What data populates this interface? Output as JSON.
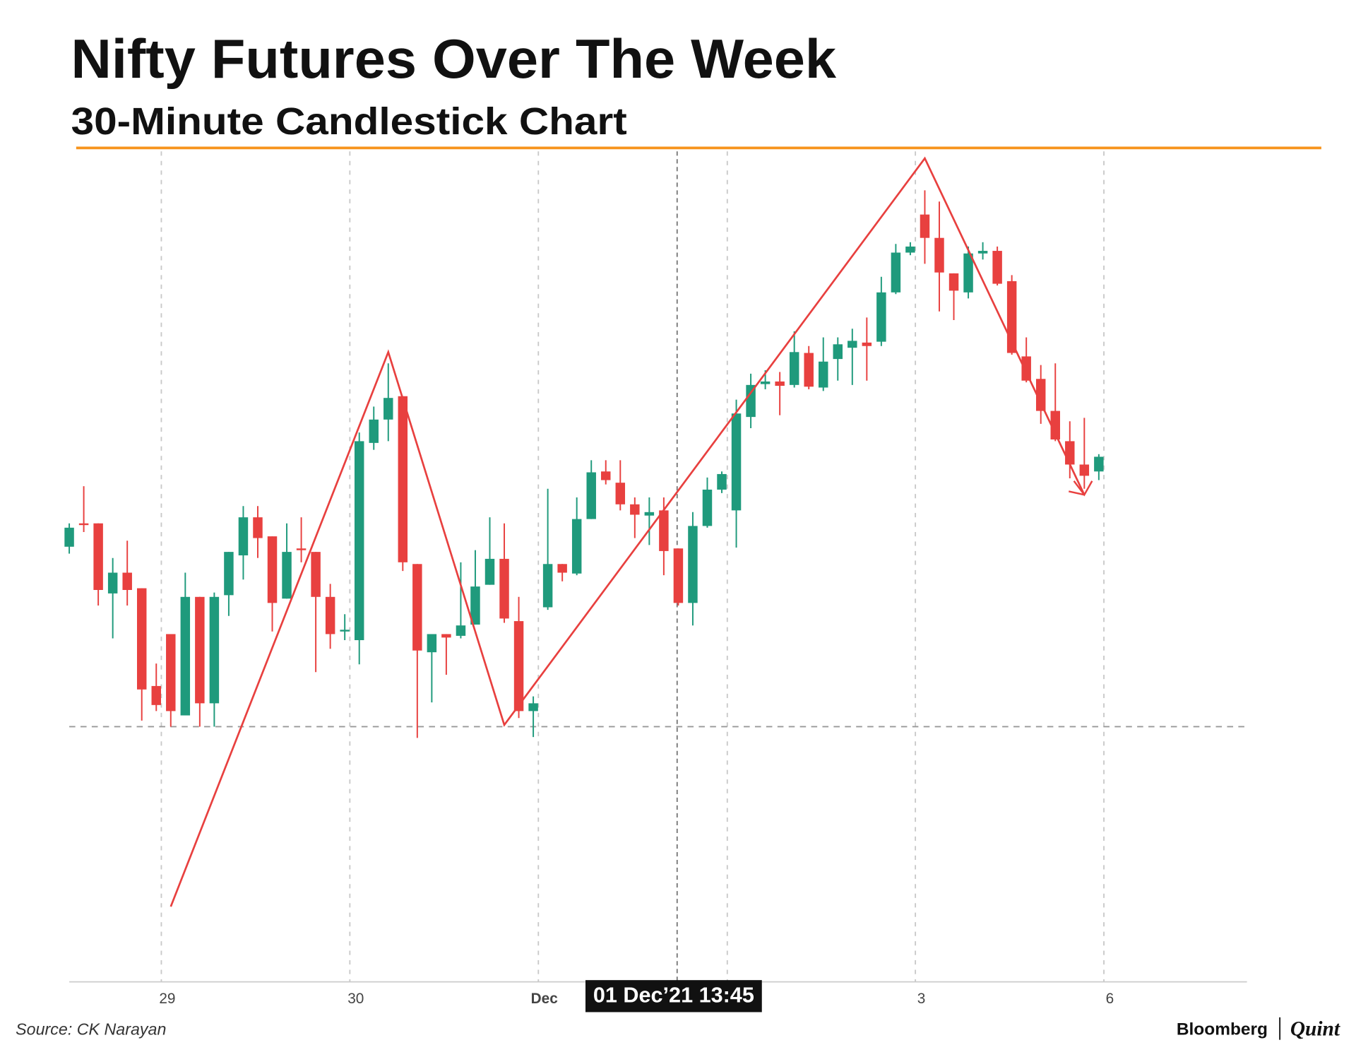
{
  "chart_data": {
    "type": "candlestick",
    "title": "Nifty Futures Over The Week",
    "subtitle": "30-Minute Candlestick Chart",
    "source": "Source: CK Narayan",
    "brand": [
      "Bloomberg",
      "Quint"
    ],
    "crosshair_label": "01 Dec’21 13:45",
    "categories": [
      null,
      null,
      null,
      null,
      null,
      null,
      null,
      "29",
      null,
      null,
      null,
      null,
      null,
      null,
      null,
      null,
      null,
      null,
      null,
      null,
      "30",
      null,
      null,
      null,
      null,
      null,
      null,
      null,
      null,
      null,
      null,
      null,
      null,
      "Dec",
      null,
      null,
      null,
      null,
      null,
      null,
      null,
      null,
      null,
      null,
      null,
      null,
      null,
      null,
      null,
      null,
      null,
      null,
      null,
      null,
      null,
      null,
      null,
      null,
      null,
      "3",
      null,
      null,
      null,
      null,
      null,
      null,
      null,
      null,
      null,
      null,
      null,
      null,
      "6",
      null,
      null,
      null,
      null,
      null,
      null,
      null,
      null,
      null
    ],
    "open": [
      503,
      530,
      530,
      449,
      473,
      455,
      342,
      402,
      308,
      445,
      322,
      447,
      493,
      537,
      515,
      443,
      501,
      497,
      445,
      405,
      395,
      623,
      650,
      677,
      483,
      381,
      402,
      400,
      413,
      459,
      489,
      417,
      313,
      433,
      483,
      472,
      535,
      590,
      577,
      552,
      539,
      545,
      501,
      438,
      527,
      569,
      545,
      653,
      691,
      694,
      690,
      727,
      687,
      720,
      733,
      739,
      740,
      797,
      843,
      887,
      860,
      819,
      797,
      842,
      845,
      810,
      723,
      697,
      660,
      625,
      598,
      590,
      null,
      null,
      null,
      null,
      null,
      null,
      null,
      null,
      null,
      null
    ],
    "high": [
      530,
      573,
      530,
      490,
      510,
      455,
      368,
      402,
      473,
      445,
      450,
      497,
      550,
      550,
      515,
      530,
      537,
      497,
      460,
      425,
      635,
      665,
      715,
      677,
      483,
      402,
      402,
      485,
      499,
      537,
      530,
      445,
      330,
      570,
      483,
      560,
      603,
      603,
      603,
      560,
      560,
      560,
      501,
      543,
      583,
      590,
      673,
      703,
      707,
      705,
      752,
      735,
      745,
      745,
      755,
      768,
      815,
      853,
      855,
      915,
      902,
      819,
      850,
      855,
      850,
      817,
      745,
      713,
      715,
      648,
      652,
      610,
      null,
      null,
      null,
      null,
      null,
      null,
      null,
      null,
      null,
      null
    ],
    "low": [
      495,
      520,
      435,
      397,
      435,
      302,
      313,
      295,
      308,
      295,
      295,
      423,
      465,
      490,
      405,
      443,
      485,
      358,
      385,
      395,
      367,
      615,
      625,
      475,
      282,
      323,
      355,
      397,
      413,
      459,
      415,
      305,
      283,
      430,
      463,
      470,
      535,
      575,
      545,
      513,
      505,
      470,
      435,
      412,
      525,
      565,
      502,
      640,
      685,
      655,
      687,
      685,
      683,
      695,
      690,
      695,
      735,
      795,
      840,
      830,
      775,
      765,
      790,
      835,
      805,
      725,
      693,
      645,
      625,
      582,
      570,
      580,
      null,
      null,
      null,
      null,
      null,
      null,
      null,
      null,
      null,
      null
    ],
    "close": [
      525,
      528,
      453,
      473,
      453,
      338,
      320,
      313,
      445,
      322,
      445,
      497,
      537,
      513,
      438,
      497,
      499,
      445,
      402,
      407,
      625,
      650,
      675,
      485,
      383,
      402,
      398,
      412,
      457,
      489,
      420,
      313,
      322,
      483,
      473,
      535,
      589,
      580,
      552,
      540,
      543,
      498,
      438,
      527,
      569,
      587,
      657,
      690,
      694,
      689,
      728,
      688,
      717,
      737,
      741,
      735,
      797,
      843,
      850,
      860,
      820,
      799,
      842,
      845,
      807,
      727,
      695,
      660,
      627,
      598,
      585,
      607,
      null,
      null,
      null,
      null,
      null,
      null,
      null,
      null,
      null,
      null
    ],
    "up_color": "#1f9a7c",
    "down_color": "#e8403f",
    "ylim": [
      0,
      960
    ],
    "hline": 295,
    "zigzag": {
      "color": "#e8403f",
      "points": [
        {
          "x": 7,
          "y": 87
        },
        {
          "x": 22,
          "y": 728
        },
        {
          "x": 30,
          "y": 297
        },
        {
          "x": 59,
          "y": 952
        },
        {
          "x": 70,
          "y": 563
        }
      ]
    },
    "grid": true
  }
}
